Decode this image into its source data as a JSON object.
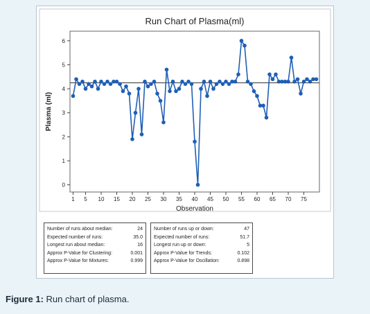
{
  "caption": {
    "label": "Figure 1:",
    "text": "Run chart of plasma."
  },
  "chart_data": {
    "type": "line",
    "title": "Run Chart of Plasma(ml)",
    "xlabel": "Observation",
    "ylabel": "Plasma (ml)",
    "xlim": [
      0,
      80
    ],
    "ylim": [
      -0.3,
      6.4
    ],
    "xticks": [
      1,
      5,
      10,
      15,
      20,
      25,
      30,
      35,
      40,
      45,
      50,
      55,
      60,
      65,
      70,
      75
    ],
    "yticks": [
      0,
      1,
      2,
      3,
      4,
      5,
      6
    ],
    "median": 4.25,
    "grid": false,
    "series": [
      {
        "color": "#1f5fb4",
        "x": [
          1,
          2,
          3,
          4,
          5,
          6,
          7,
          8,
          9,
          10,
          11,
          12,
          13,
          14,
          15,
          16,
          17,
          18,
          19,
          20,
          21,
          22,
          23,
          24,
          25,
          26,
          27,
          28,
          29,
          30,
          31,
          32,
          33,
          34,
          35,
          36,
          37,
          38,
          39,
          40,
          41,
          42,
          43,
          44,
          45,
          46,
          47,
          48,
          49,
          50,
          51,
          52,
          53,
          54,
          55,
          56,
          57,
          58,
          59,
          60,
          61,
          62,
          63,
          64,
          65,
          66,
          67,
          68,
          69,
          70,
          71,
          72,
          73,
          74,
          75,
          76,
          77,
          78,
          79
        ],
        "y": [
          3.7,
          4.4,
          4.2,
          4.3,
          4.0,
          4.2,
          4.1,
          4.3,
          4.0,
          4.3,
          4.2,
          4.3,
          4.2,
          4.3,
          4.3,
          4.2,
          3.9,
          4.1,
          3.8,
          1.9,
          3.0,
          4.0,
          2.1,
          4.3,
          4.1,
          4.2,
          4.3,
          3.8,
          3.5,
          2.6,
          4.8,
          3.9,
          4.3,
          3.9,
          4.0,
          4.3,
          4.2,
          4.3,
          4.2,
          1.8,
          0.0,
          4.0,
          4.3,
          3.7,
          4.3,
          4.0,
          4.2,
          4.3,
          4.2,
          4.3,
          4.2,
          4.3,
          4.3,
          4.6,
          6.0,
          5.8,
          4.3,
          4.2,
          3.9,
          3.7,
          3.3,
          3.3,
          2.8,
          4.6,
          4.4,
          4.6,
          4.3,
          4.3,
          4.3,
          4.3,
          5.3,
          4.3,
          4.4,
          3.8,
          4.3,
          4.4,
          4.3,
          4.4,
          4.4
        ]
      }
    ]
  },
  "stats_left": [
    {
      "label": "Number of runs about median:",
      "value": "24"
    },
    {
      "label": "Expected number of runs:",
      "value": "35.0"
    },
    {
      "label": "Longest run about median:",
      "value": "16"
    },
    {
      "label": "Approx P-Value for Clustering:",
      "value": "0.001"
    },
    {
      "label": "Approx P-Value for Mixtures:",
      "value": "0.999"
    }
  ],
  "stats_right": [
    {
      "label": "Number of runs up or down:",
      "value": "47"
    },
    {
      "label": "Expected number of runs:",
      "value": "51.7"
    },
    {
      "label": "Longest run up or down:",
      "value": "5"
    },
    {
      "label": "Approx P-Value for Trends:",
      "value": "0.102"
    },
    {
      "label": "Approx P-Value for Oscillation:",
      "value": "0.898"
    }
  ]
}
